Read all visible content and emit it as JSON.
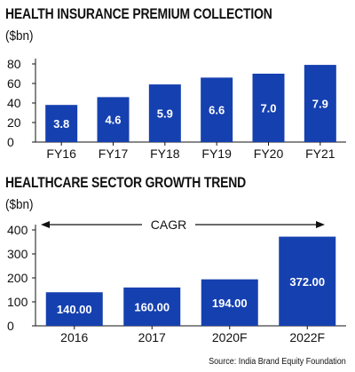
{
  "chart_data": [
    {
      "type": "bar",
      "title": "HEALTH INSURANCE PREMIUM COLLECTION",
      "unit_label": "($bn)",
      "categories": [
        "FY16",
        "FY17",
        "FY18",
        "FY19",
        "FY20",
        "FY21"
      ],
      "values": [
        3.8,
        4.6,
        5.9,
        6.6,
        7.0,
        7.9
      ],
      "value_labels": [
        "3.8",
        "4.6",
        "5.9",
        "6.6",
        "7.0",
        "7.9"
      ],
      "ylim": [
        0,
        80
      ],
      "yticks": [
        "0",
        "20",
        "40",
        "60",
        "80"
      ],
      "scale_factor": 10,
      "bar_color": "#1540b0",
      "label_color": "#ffffff",
      "grid": false
    },
    {
      "type": "bar",
      "title": "HEALTHCARE SECTOR GROWTH TREND",
      "unit_label": "($bn)",
      "annotation": "CAGR",
      "categories": [
        "2016",
        "2017",
        "2020F",
        "2022F"
      ],
      "values": [
        140.0,
        160.0,
        194.0,
        372.0
      ],
      "value_labels": [
        "140.00",
        "160.00",
        "194.00",
        "372.00"
      ],
      "ylim": [
        0,
        400
      ],
      "yticks": [
        "0",
        "100",
        "200",
        "300",
        "400"
      ],
      "bar_color": "#1540b0",
      "label_color": "#ffffff",
      "grid": false
    }
  ],
  "source": "Source: India Brand Equity Foundation"
}
